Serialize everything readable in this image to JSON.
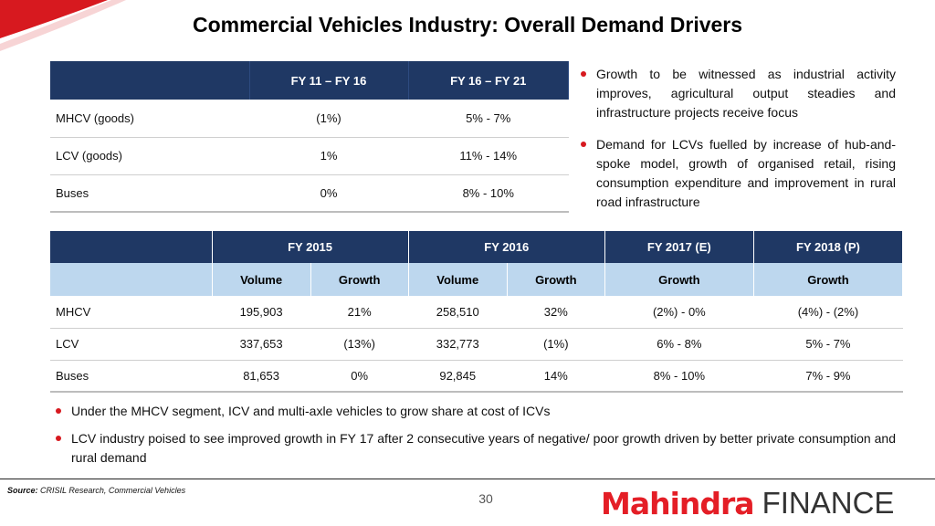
{
  "title": "Commercial Vehicles Industry: Overall Demand Drivers",
  "table1": {
    "headers": [
      "",
      "FY 11 – FY 16",
      "FY 16 – FY 21"
    ],
    "rows": [
      [
        "MHCV (goods)",
        "(1%)",
        "5% - 7%"
      ],
      [
        "LCV (goods)",
        "1%",
        "11% - 14%"
      ],
      [
        "Buses",
        "0%",
        "8% - 10%"
      ]
    ]
  },
  "right_bullets": [
    "Growth to be witnessed as industrial activity improves, agricultural output steadies and infrastructure projects receive focus",
    "Demand for LCVs fuelled by increase of hub-and-spoke model, growth of organised retail, rising consumption expenditure and improvement in rural road infrastructure"
  ],
  "table2": {
    "group_headers": [
      "",
      "FY 2015",
      "FY 2016",
      "FY 2017 (E)",
      "FY 2018 (P)"
    ],
    "sub_headers": [
      "",
      "Volume",
      "Growth",
      "Volume",
      "Growth",
      "Growth",
      "Growth"
    ],
    "rows": [
      [
        "MHCV",
        "195,903",
        "21%",
        "258,510",
        "32%",
        "(2%) - 0%",
        "(4%) - (2%)"
      ],
      [
        "LCV",
        "337,653",
        "(13%)",
        "332,773",
        "(1%)",
        "6% - 8%",
        "5% - 7%"
      ],
      [
        "Buses",
        "81,653",
        "0%",
        "92,845",
        "14%",
        "8% - 10%",
        "7% - 9%"
      ]
    ]
  },
  "bottom_bullets": [
    "Under the MHCV segment, ICV and multi-axle vehicles to grow share at cost of ICVs",
    "LCV industry poised to see improved growth in FY 17 after 2 consecutive years of negative/ poor growth driven by better private consumption and rural demand"
  ],
  "footer": {
    "source_label": "Source:",
    "source_text": " CRISIL Research, Commercial Vehicles",
    "page_number": "30",
    "logo_brand": "Mahindra",
    "logo_sub": "FINANCE"
  },
  "colors": {
    "header_navy": "#1f3864",
    "subheader_blue": "#bdd7ee",
    "accent_red": "#d7191f",
    "brand_red": "#e41e26"
  }
}
